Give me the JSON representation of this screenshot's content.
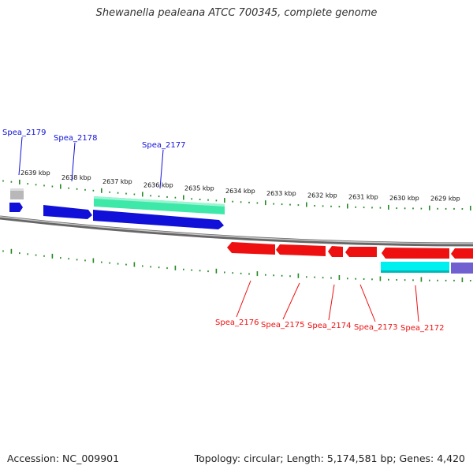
{
  "title": "Shewanella pealeana ATCC 700345, complete genome",
  "footer": {
    "accession": "Accession: NC_009901",
    "summary": "Topology: circular; Length: 5,174,581 bp; Genes: 4,420"
  },
  "colors": {
    "forward_gene": "#1010d8",
    "forward_cds": "#3ee8a8",
    "reverse_gene": "#ee1010",
    "reverse_cds": "#00f0f0",
    "other_cds": "#7060d0",
    "grey_feature": "#b8b8b8",
    "ticks": "#228822",
    "backbone": "#888888"
  },
  "ruler": {
    "labels": [
      "2639 kbp",
      "2638 kbp",
      "2637 kbp",
      "2636 kbp",
      "2635 kbp",
      "2634 kbp",
      "2633 kbp",
      "2632 kbp",
      "2631 kbp",
      "2630 kbp",
      "2629 kbp"
    ]
  },
  "forward_labels": [
    "Spea_2179",
    "Spea_2178",
    "Spea_2177"
  ],
  "reverse_labels": [
    "Spea_2176",
    "Spea_2175",
    "Spea_2174",
    "Spea_2173",
    "Spea_2172"
  ]
}
